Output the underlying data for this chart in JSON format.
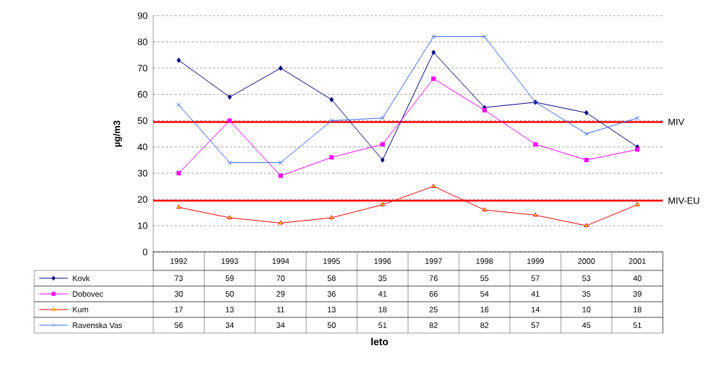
{
  "chart_data": {
    "type": "line",
    "annotations": [
      "leto"
    ],
    "ylabel": "µg/m3",
    "categories": [
      "1992",
      "1993",
      "1994",
      "1995",
      "1996",
      "1997",
      "1998",
      "1999",
      "2000",
      "2001"
    ],
    "series": [
      {
        "name": "Kovk",
        "color": "#000080",
        "marker": "diamond",
        "values": [
          73,
          59,
          70,
          58,
          35,
          76,
          55,
          57,
          53,
          40
        ]
      },
      {
        "name": "Dobovec",
        "color": "#ff00ff",
        "marker": "square",
        "values": [
          30,
          50,
          29,
          36,
          41,
          66,
          54,
          41,
          35,
          39
        ]
      },
      {
        "name": "Kum",
        "color": "#ff0000",
        "marker": "triangle",
        "values": [
          17,
          13,
          11,
          13,
          18,
          25,
          16,
          14,
          10,
          18
        ]
      },
      {
        "name": "Ravenska Vas",
        "color": "#3366ff",
        "marker": "cross",
        "values": [
          56,
          34,
          34,
          50,
          51,
          82,
          82,
          57,
          45,
          51
        ]
      }
    ],
    "ylim": [
      0,
      90
    ],
    "yticks": [
      0,
      10,
      20,
      30,
      40,
      50,
      60,
      70,
      80,
      90
    ],
    "ref_lines": [
      {
        "axis": "y",
        "value": 49.5,
        "label": "MIV",
        "color": "#ff0000"
      },
      {
        "axis": "y",
        "value": 19.5,
        "label": "MIV-EU",
        "color": "#ff0000"
      }
    ],
    "grid": "y",
    "legend": "bottom",
    "data_labels": true
  }
}
